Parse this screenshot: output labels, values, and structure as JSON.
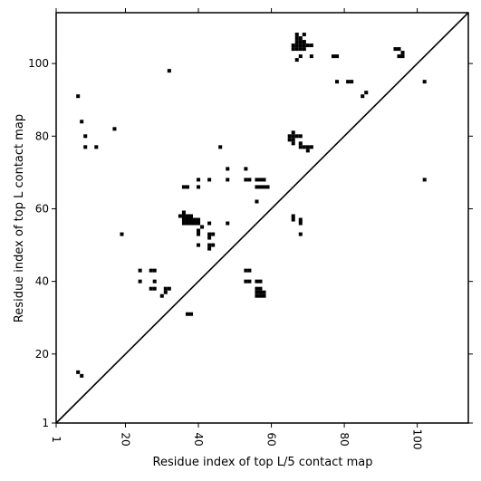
{
  "chart_data": {
    "type": "scatter",
    "title": "",
    "xlabel": "Residue index of top L/5 contact map",
    "ylabel": "Residue index of top L contact map",
    "xlim": [
      1,
      114
    ],
    "ylim": [
      1,
      114
    ],
    "x_ticks": [
      1,
      20,
      40,
      60,
      80,
      100
    ],
    "y_ticks": [
      1,
      20,
      40,
      60,
      80,
      100
    ],
    "grid": false,
    "diagonal": true,
    "marker": "square",
    "marker_color": "#000000",
    "points": [
      [
        7,
        91
      ],
      [
        8,
        84
      ],
      [
        9,
        80
      ],
      [
        9,
        77
      ],
      [
        12,
        77
      ],
      [
        17,
        82
      ],
      [
        19,
        53
      ],
      [
        32,
        98
      ],
      [
        7,
        15
      ],
      [
        8,
        14
      ],
      [
        24,
        43
      ],
      [
        24,
        40
      ],
      [
        27,
        43
      ],
      [
        28,
        43
      ],
      [
        27,
        38
      ],
      [
        28,
        38
      ],
      [
        28,
        40
      ],
      [
        30,
        36
      ],
      [
        31,
        37
      ],
      [
        31,
        38
      ],
      [
        32,
        38
      ],
      [
        36,
        66
      ],
      [
        37,
        66
      ],
      [
        37,
        31
      ],
      [
        38,
        31
      ],
      [
        35,
        58
      ],
      [
        36,
        59
      ],
      [
        36,
        58
      ],
      [
        37,
        58
      ],
      [
        38,
        58
      ],
      [
        36,
        57
      ],
      [
        37,
        57
      ],
      [
        38,
        57
      ],
      [
        39,
        57
      ],
      [
        40,
        57
      ],
      [
        36,
        56
      ],
      [
        37,
        56
      ],
      [
        38,
        56
      ],
      [
        39,
        56
      ],
      [
        40,
        56
      ],
      [
        40,
        54
      ],
      [
        40,
        53
      ],
      [
        41,
        55
      ],
      [
        40,
        50
      ],
      [
        43,
        56
      ],
      [
        43,
        53
      ],
      [
        44,
        53
      ],
      [
        43,
        52
      ],
      [
        43,
        50
      ],
      [
        44,
        50
      ],
      [
        43,
        49
      ],
      [
        40,
        66
      ],
      [
        40,
        68
      ],
      [
        43,
        68
      ],
      [
        46,
        77
      ],
      [
        48,
        71
      ],
      [
        48,
        68
      ],
      [
        48,
        56
      ],
      [
        53,
        71
      ],
      [
        53,
        68
      ],
      [
        54,
        68
      ],
      [
        53,
        43
      ],
      [
        54,
        43
      ],
      [
        53,
        40
      ],
      [
        54,
        40
      ],
      [
        56,
        62
      ],
      [
        56,
        68
      ],
      [
        57,
        68
      ],
      [
        58,
        68
      ],
      [
        56,
        66
      ],
      [
        57,
        66
      ],
      [
        58,
        66
      ],
      [
        59,
        66
      ],
      [
        56,
        40
      ],
      [
        57,
        40
      ],
      [
        56,
        38
      ],
      [
        57,
        38
      ],
      [
        56,
        37
      ],
      [
        57,
        37
      ],
      [
        58,
        37
      ],
      [
        56,
        36
      ],
      [
        57,
        36
      ],
      [
        58,
        36
      ],
      [
        66,
        58
      ],
      [
        66,
        57
      ],
      [
        68,
        57
      ],
      [
        68,
        56
      ],
      [
        68,
        53
      ],
      [
        65,
        80
      ],
      [
        66,
        80
      ],
      [
        67,
        80
      ],
      [
        68,
        80
      ],
      [
        65,
        79
      ],
      [
        66,
        79
      ],
      [
        66,
        81
      ],
      [
        66,
        78
      ],
      [
        68,
        78
      ],
      [
        68,
        77
      ],
      [
        69,
        77
      ],
      [
        70,
        77
      ],
      [
        71,
        77
      ],
      [
        70,
        76
      ],
      [
        66,
        105
      ],
      [
        67,
        105
      ],
      [
        68,
        105
      ],
      [
        69,
        105
      ],
      [
        70,
        105
      ],
      [
        71,
        105
      ],
      [
        66,
        104
      ],
      [
        67,
        104
      ],
      [
        68,
        104
      ],
      [
        69,
        104
      ],
      [
        67,
        106
      ],
      [
        68,
        106
      ],
      [
        69,
        106
      ],
      [
        67,
        107
      ],
      [
        68,
        107
      ],
      [
        67,
        108
      ],
      [
        69,
        108
      ],
      [
        67,
        101
      ],
      [
        68,
        102
      ],
      [
        71,
        102
      ],
      [
        77,
        102
      ],
      [
        78,
        102
      ],
      [
        78,
        95
      ],
      [
        81,
        95
      ],
      [
        82,
        95
      ],
      [
        85,
        91
      ],
      [
        86,
        92
      ],
      [
        94,
        104
      ],
      [
        95,
        104
      ],
      [
        95,
        102
      ],
      [
        96,
        102
      ],
      [
        96,
        103
      ],
      [
        102,
        95
      ],
      [
        102,
        68
      ]
    ]
  }
}
